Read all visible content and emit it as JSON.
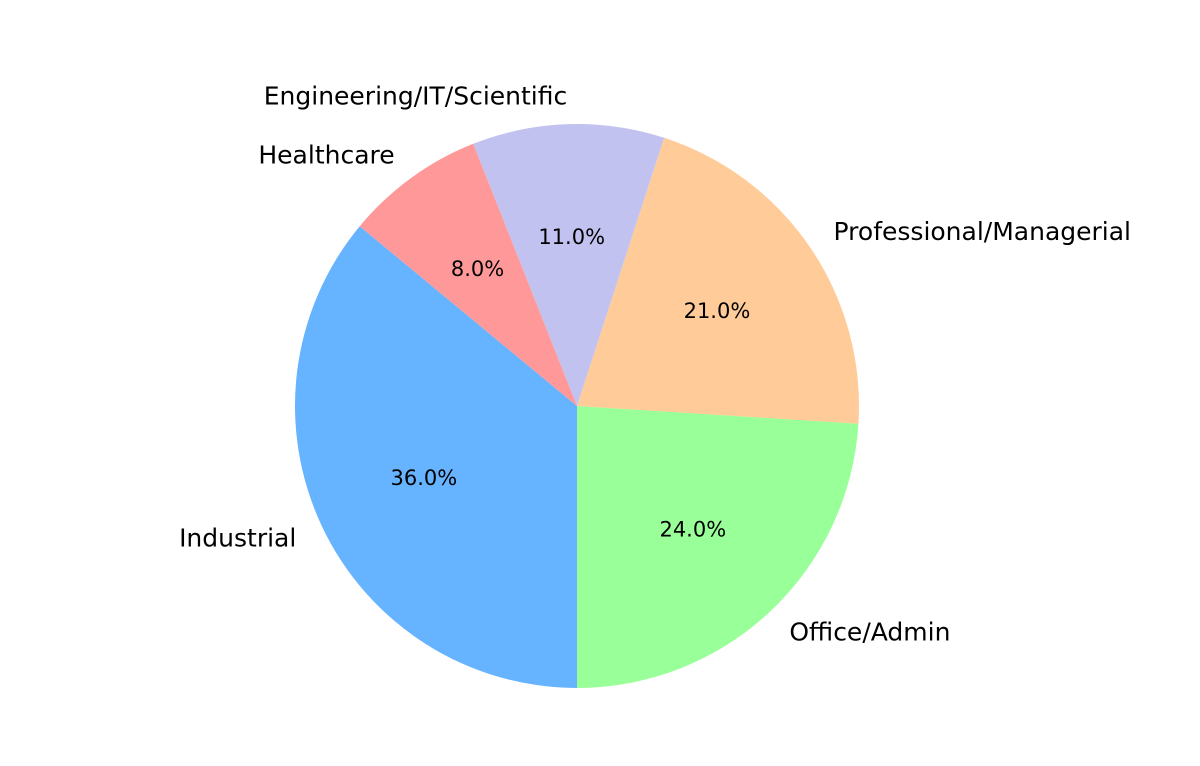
{
  "chart_data": {
    "type": "pie",
    "title": "",
    "categories": [
      "Industrial",
      "Office/Admin",
      "Professional/Managerial",
      "Engineering/IT/Scientific",
      "Healthcare"
    ],
    "values": [
      36.0,
      24.0,
      21.0,
      11.0,
      8.0
    ],
    "percent_labels": [
      "36.0%",
      "24.0%",
      "21.0%",
      "11.0%",
      "8.0%"
    ],
    "colors": [
      "#66b3ff",
      "#99ff99",
      "#ffcc99",
      "#c2c2f0",
      "#ff9999"
    ],
    "start_angle_deg": 140.4,
    "direction": "counterclockwise",
    "legend": "none"
  }
}
